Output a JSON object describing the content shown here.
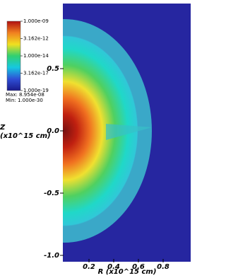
{
  "chart_data": {
    "type": "field",
    "xlabel": "R (x10^15 cm)",
    "ylabel": [
      "Z",
      "(x10^15 cm)"
    ],
    "xlim": [
      0,
      1.0
    ],
    "ylim": [
      -1.0,
      1.0
    ],
    "xticks": [
      0.2,
      0.4,
      0.6,
      0.8
    ],
    "yticks": [
      0.5,
      {
        "value": 0,
        "label": "0.0"
      },
      {
        "value": -0.5,
        "label": "-0.5"
      },
      {
        "value": -1.0,
        "label": "-1.0"
      }
    ],
    "colorbar": {
      "log": true,
      "lim": [
        1e-19,
        1e-09
      ],
      "colors": [
        "#1a1a8c",
        "#2f4fd6",
        "#16c8e0",
        "#30d070",
        "#f0e020",
        "#f08020",
        "#b01010"
      ],
      "ticks": [
        {
          "value": 1e-09,
          "label": "1.000e-09"
        },
        {
          "value": 3.162e-12,
          "label": "3.162e-12"
        },
        {
          "value": 1e-14,
          "label": "1.000e-14"
        },
        {
          "value": 3.162e-17,
          "label": "3.162e-17"
        },
        {
          "value": 1e-19,
          "label": "1.000e-19"
        }
      ],
      "max": "Max: 8.954e-08",
      "min": "Min: 1.000e-30"
    }
  }
}
